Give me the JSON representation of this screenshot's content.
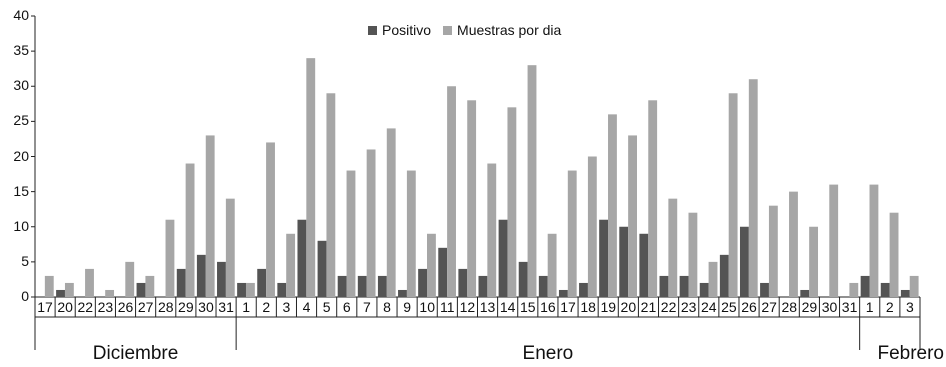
{
  "chart_data": {
    "type": "bar",
    "categories": [
      "17",
      "20",
      "22",
      "23",
      "26",
      "27",
      "28",
      "29",
      "30",
      "31",
      "1",
      "2",
      "3",
      "4",
      "5",
      "6",
      "7",
      "8",
      "9",
      "10",
      "11",
      "12",
      "13",
      "14",
      "15",
      "16",
      "17",
      "18",
      "19",
      "20",
      "21",
      "22",
      "23",
      "24",
      "25",
      "26",
      "27",
      "28",
      "29",
      "30",
      "31",
      "1",
      "2",
      "3"
    ],
    "groups": [
      "Diciembre",
      "Enero",
      "Febrero"
    ],
    "group_sizes": [
      10,
      31,
      3
    ],
    "series": [
      {
        "name": "Positivo",
        "color": "#545454",
        "values": [
          0,
          1,
          0,
          0,
          0,
          2,
          0,
          4,
          6,
          5,
          2,
          4,
          2,
          11,
          8,
          3,
          3,
          3,
          1,
          4,
          7,
          4,
          3,
          11,
          5,
          3,
          1,
          2,
          11,
          10,
          9,
          3,
          3,
          2,
          6,
          10,
          2,
          0,
          1,
          0,
          0,
          3,
          2,
          1
        ]
      },
      {
        "name": "Muestras por dia",
        "color": "#a6a6a6",
        "values": [
          3,
          2,
          4,
          1,
          5,
          3,
          11,
          19,
          23,
          14,
          2,
          22,
          9,
          34,
          29,
          18,
          21,
          24,
          18,
          9,
          30,
          28,
          19,
          27,
          33,
          9,
          18,
          20,
          26,
          23,
          28,
          14,
          12,
          5,
          29,
          31,
          13,
          15,
          10,
          16,
          2,
          16,
          12,
          3
        ]
      }
    ],
    "ylim": [
      0,
      40
    ],
    "yticks": [
      0,
      5,
      10,
      15,
      20,
      25,
      30,
      35,
      40
    ],
    "legend_position": "top-center",
    "grid": false
  }
}
